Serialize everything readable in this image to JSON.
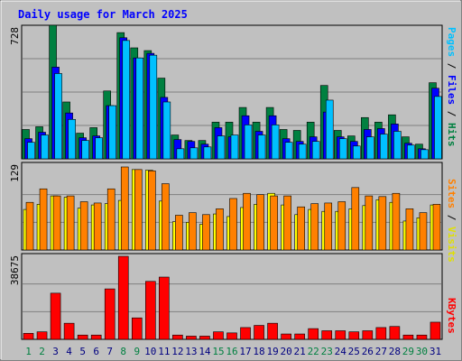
{
  "chart_data": {
    "type": "bar",
    "title": "Daily usage for March 2025",
    "categories": [
      "1",
      "2",
      "3",
      "4",
      "5",
      "6",
      "7",
      "8",
      "9",
      "10",
      "11",
      "12",
      "13",
      "14",
      "15",
      "16",
      "17",
      "18",
      "19",
      "20",
      "21",
      "22",
      "23",
      "24",
      "25",
      "26",
      "27",
      "28",
      "29",
      "30",
      "31"
    ],
    "weekend_days": [
      "1",
      "2",
      "8",
      "9",
      "15",
      "16",
      "22",
      "23",
      "29",
      "30"
    ],
    "panels": [
      {
        "id": "hits-files-pages",
        "scale_label": "728",
        "ymax": 728,
        "axis_label_parts": [
          "Pages",
          "Files",
          "Hits"
        ],
        "series": [
          {
            "name": "Hits",
            "color": "#008040",
            "values": [
              160,
              175,
              728,
              310,
              140,
              170,
              370,
              688,
              605,
              590,
              440,
              130,
              100,
              100,
              200,
              200,
              280,
              200,
              280,
              160,
              155,
              200,
              400,
              155,
              125,
              225,
              200,
              240,
              120,
              80,
              415
            ]
          },
          {
            "name": "Files",
            "color": "#0000ff",
            "values": [
              110,
              145,
              500,
              250,
              115,
              125,
              290,
              660,
              550,
              575,
              335,
              105,
              95,
              80,
              170,
              120,
              235,
              150,
              235,
              110,
              95,
              120,
              255,
              120,
              95,
              160,
              165,
              190,
              85,
              55,
              385
            ]
          },
          {
            "name": "Pages",
            "color": "#00c0ff",
            "values": [
              90,
              130,
              465,
              215,
              100,
              115,
              290,
              645,
              550,
              565,
              310,
              55,
              60,
              65,
              125,
              130,
              185,
              130,
              185,
              90,
              80,
              95,
              320,
              110,
              70,
              120,
              135,
              150,
              75,
              50,
              340
            ]
          }
        ]
      },
      {
        "id": "visits-sites",
        "scale_label": "129",
        "ymax": 129,
        "axis_label_parts": [
          "Sites",
          "Visits"
        ],
        "series": [
          {
            "name": "Visits",
            "color": "#ffff00",
            "values": [
              63,
              71,
              84,
              82,
              65,
              70,
              72,
              77,
              125,
              124,
              76,
              44,
              43,
              40,
              56,
              52,
              66,
              71,
              88,
              70,
              55,
              63,
              60,
              60,
              64,
              69,
              78,
              74,
              45,
              50,
              70
            ]
          },
          {
            "name": "Sites",
            "color": "#ff8000",
            "values": [
              74,
              95,
              84,
              84,
              75,
              73,
              95,
              129,
              125,
              123,
              103,
              54,
              58,
              55,
              64,
              80,
              88,
              86,
              84,
              84,
              67,
              72,
              73,
              75,
              97,
              84,
              83,
              88,
              64,
              58,
              71
            ]
          }
        ]
      },
      {
        "id": "kbytes",
        "scale_label": "38675",
        "ymax": 38675,
        "axis_label_parts": [
          "KBytes"
        ],
        "series": [
          {
            "name": "KBytes",
            "color": "#ff0000",
            "values": [
              2800,
              3500,
              21500,
              7500,
              2000,
              2000,
              23500,
              38675,
              10000,
              27000,
              29000,
              2000,
              1500,
              1500,
              3500,
              3000,
              5500,
              6500,
              7500,
              2500,
              2500,
              5000,
              4000,
              4000,
              3500,
              4000,
              5500,
              6000,
              2000,
              2000,
              8000
            ]
          }
        ]
      }
    ]
  }
}
